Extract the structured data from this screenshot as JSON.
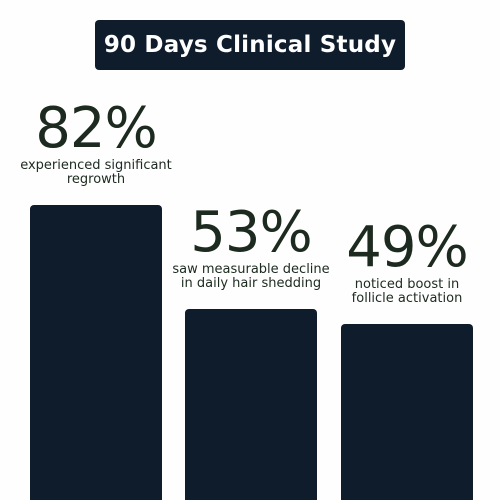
{
  "title": "90 Days Clinical Study",
  "colors": {
    "bar": "#0f1c2b",
    "title_bg": "#0f1c2b",
    "value_text": "#1c2a1f",
    "background": "#fefefe"
  },
  "chart_data": {
    "type": "bar",
    "title": "90 Days Clinical Study",
    "categories": [
      "experienced significant regrowth",
      "saw measurable decline in daily hair shedding",
      "noticed boost in follicle activation"
    ],
    "values": [
      82,
      53,
      49
    ],
    "value_labels": [
      "82%",
      "53%",
      "49%"
    ],
    "caption_lines": [
      [
        "experienced significant",
        "regrowth"
      ],
      [
        "saw measurable decline",
        "in daily hair shedding"
      ],
      [
        "noticed boost in",
        "follicle activation"
      ]
    ],
    "ylim": [
      0,
      100
    ],
    "grid": false,
    "axes_visible": false
  }
}
